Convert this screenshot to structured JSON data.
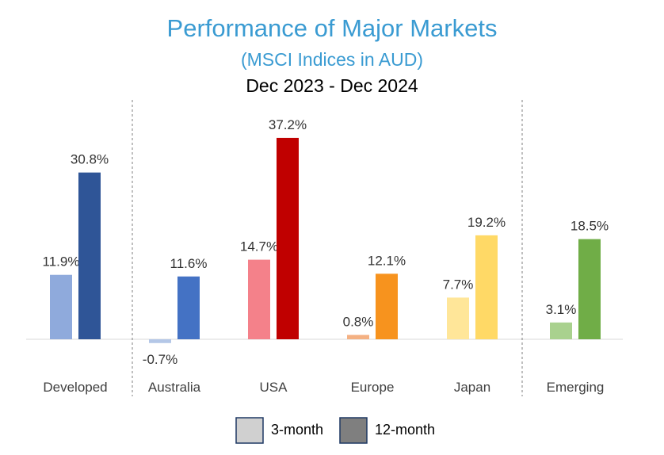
{
  "chart_data": {
    "type": "bar",
    "title": "Performance of Major Markets",
    "subtitle": "(MSCI Indices in AUD)",
    "period": "Dec 2023 - Dec 2024",
    "xlabel": "",
    "ylabel": "",
    "categories": [
      "Developed",
      "Australia",
      "USA",
      "Europe",
      "Japan",
      "Emerging"
    ],
    "series": [
      {
        "name": "3-month",
        "values": [
          11.9,
          -0.7,
          14.7,
          0.8,
          7.7,
          3.1
        ],
        "labels": [
          "11.9%",
          "-0.7%",
          "14.7%",
          "0.8%",
          "7.7%",
          "3.1%"
        ],
        "colors": [
          "#8faadc",
          "#b4c7e7",
          "#f4818a",
          "#f4b183",
          "#ffe699",
          "#a9d18e"
        ]
      },
      {
        "name": "12-month",
        "values": [
          30.8,
          11.6,
          37.2,
          12.1,
          19.2,
          18.5
        ],
        "labels": [
          "30.8%",
          "11.6%",
          "37.2%",
          "12.1%",
          "19.2%",
          "18.5%"
        ],
        "colors": [
          "#2f5597",
          "#4472c4",
          "#c00000",
          "#f7931e",
          "#ffd966",
          "#70ad47"
        ]
      }
    ],
    "negative_label_color": "#ff0000",
    "legend": {
      "placement": "bottom",
      "items": [
        {
          "label": "3-month",
          "color": "#d0d0d0"
        },
        {
          "label": "12-month",
          "color": "#7f7f7f"
        }
      ]
    },
    "ylim": [
      -1,
      40
    ],
    "grid": false
  }
}
